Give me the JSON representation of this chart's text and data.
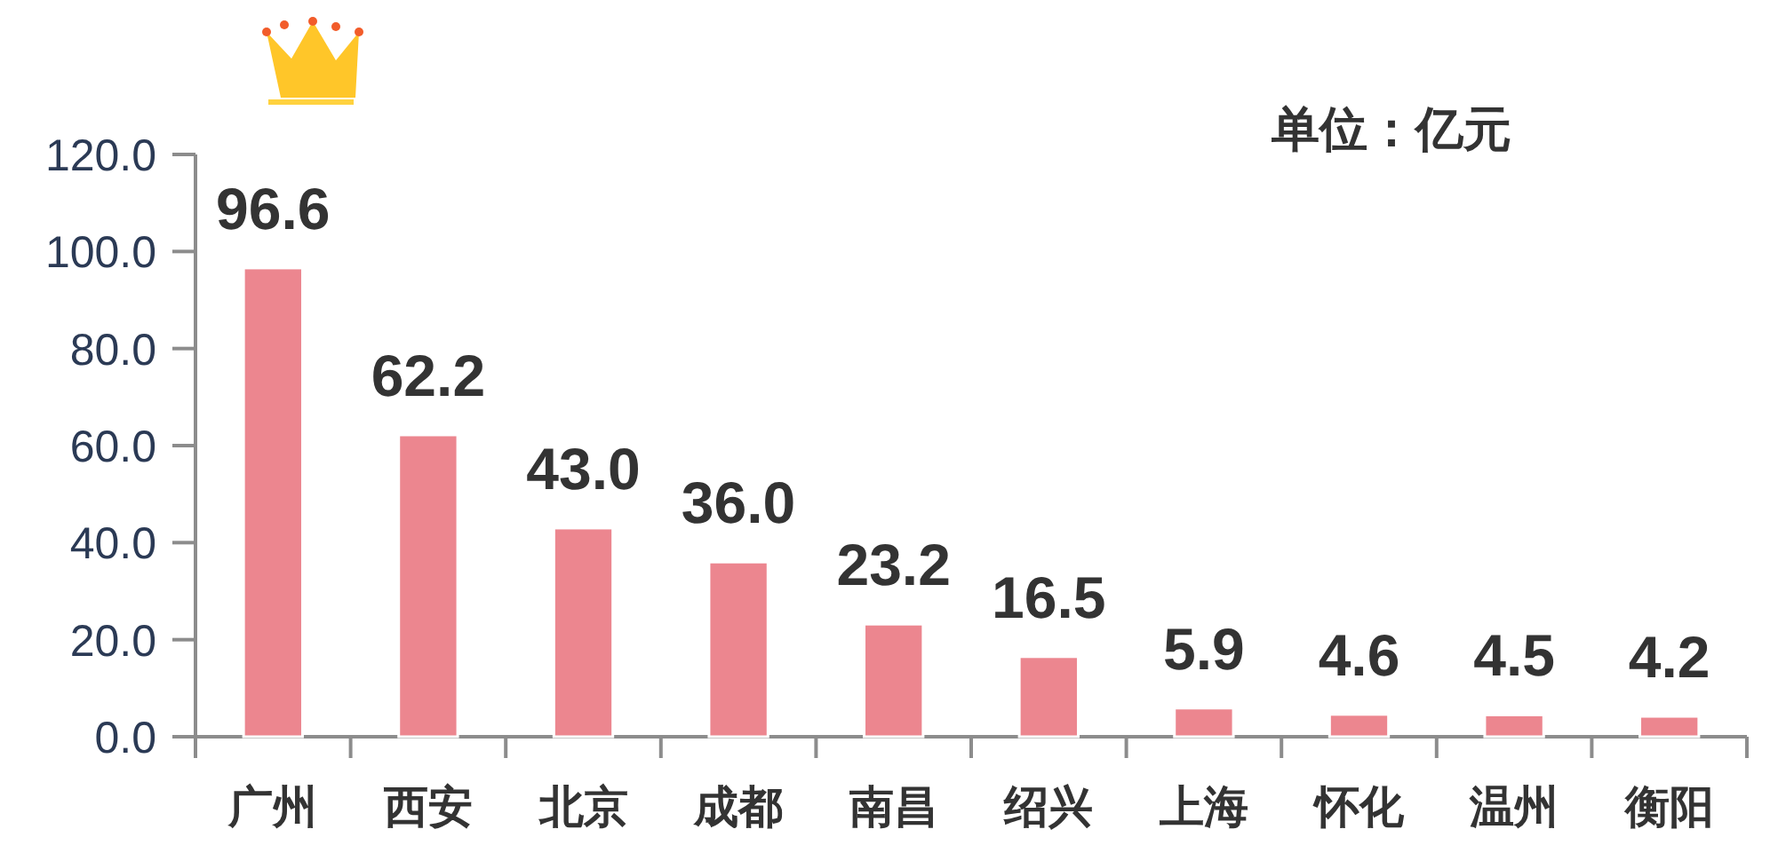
{
  "chart_data": {
    "type": "bar",
    "categories": [
      "广州",
      "西安",
      "北京",
      "成都",
      "南昌",
      "绍兴",
      "上海",
      "怀化",
      "温州",
      "衡阳"
    ],
    "values": [
      96.6,
      62.2,
      43.0,
      36.0,
      23.2,
      16.5,
      5.9,
      4.6,
      4.5,
      4.2
    ],
    "value_labels": [
      "96.6",
      "62.2",
      "43.0",
      "36.0",
      "23.2",
      "16.5",
      "5.9",
      "4.6",
      "4.5",
      "4.2"
    ],
    "color": "#ec868f",
    "ylim": [
      0,
      120
    ],
    "yticks": [
      {
        "value": 0,
        "label": "0.0"
      },
      {
        "value": 20,
        "label": "20.0"
      },
      {
        "value": 40,
        "label": "40.0"
      },
      {
        "value": 60,
        "label": "60.0"
      },
      {
        "value": 80,
        "label": "80.0"
      },
      {
        "value": 100,
        "label": "100.0"
      },
      {
        "value": 120,
        "label": "120.0"
      }
    ],
    "annotations": [
      "单位：亿元"
    ]
  }
}
